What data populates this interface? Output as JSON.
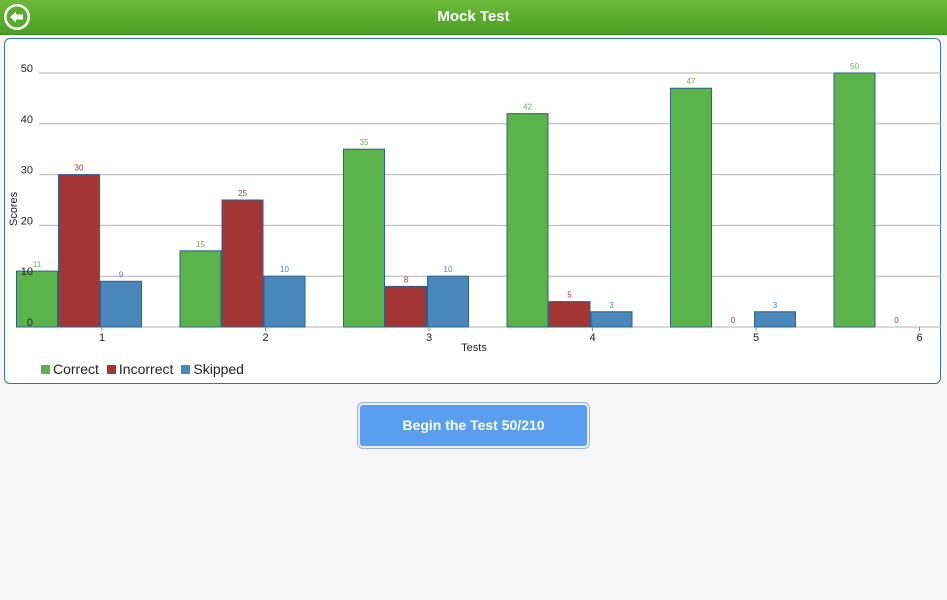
{
  "header": {
    "title": "Mock Test",
    "back_icon": "back-arrow-icon"
  },
  "colors": {
    "header": "#58ab2e",
    "correct": "#5ab44a",
    "incorrect": "#a33535",
    "skipped": "#4a87bb",
    "button": "#5a9ef0"
  },
  "chart_data": {
    "type": "bar",
    "title": "",
    "xlabel": "Tests",
    "ylabel": "Scores",
    "categories": [
      "1",
      "2",
      "3",
      "4",
      "5",
      "6"
    ],
    "ylim": [
      0,
      50
    ],
    "yticks": [
      "0",
      "10",
      "20",
      "30",
      "40",
      "50"
    ],
    "grid": true,
    "legend_position": "bottom-left",
    "series": [
      {
        "name": "Correct",
        "color": "#5ab44a",
        "values": [
          11,
          15,
          35,
          42,
          47,
          50
        ]
      },
      {
        "name": "Incorrect",
        "color": "#a33535",
        "values": [
          30,
          25,
          8,
          5,
          0,
          0
        ]
      },
      {
        "name": "Skipped",
        "color": "#4a87bb",
        "values": [
          9,
          10,
          10,
          3,
          3,
          null
        ]
      }
    ]
  },
  "begin_button": {
    "label": "Begin the Test 50/210"
  }
}
